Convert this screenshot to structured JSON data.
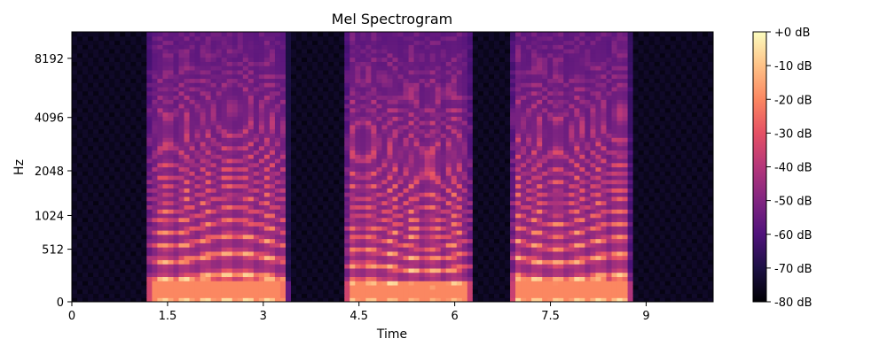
{
  "chart_data": {
    "type": "heatmap",
    "title": "Mel Spectrogram",
    "xlabel": "Time",
    "ylabel": "Hz",
    "x_ticks": [
      0,
      1.5,
      3,
      4.5,
      6,
      7.5,
      9
    ],
    "x_tick_labels": [
      "0",
      "1.5",
      "3",
      "4.5",
      "6",
      "7.5",
      "9"
    ],
    "xlim": [
      0,
      10.05
    ],
    "y_scale": "mel",
    "y_ticks": [
      0,
      512,
      1024,
      2048,
      4096,
      8192
    ],
    "y_tick_labels": [
      "0",
      "512",
      "1024",
      "2048",
      "4096",
      "8192"
    ],
    "ylim_hz": [
      0,
      11025
    ],
    "colormap": "magma",
    "colorbar": {
      "range_db": [
        -80,
        0
      ],
      "ticks": [
        0,
        -10,
        -20,
        -30,
        -40,
        -50,
        -60,
        -70,
        -80
      ],
      "tick_labels": [
        "+0 dB",
        "-10 dB",
        "-20 dB",
        "-30 dB",
        "-40 dB",
        "-50 dB",
        "-60 dB",
        "-70 dB",
        "-80 dB"
      ]
    },
    "speech_segments_s": [
      {
        "start": 1.15,
        "end": 3.4,
        "f0_hz": 210
      },
      {
        "start": 4.25,
        "end": 6.3,
        "f0_hz": 150
      },
      {
        "start": 6.85,
        "end": 8.8,
        "f0_hz": 200
      }
    ],
    "grid": false,
    "legend": "colorbar-right"
  }
}
